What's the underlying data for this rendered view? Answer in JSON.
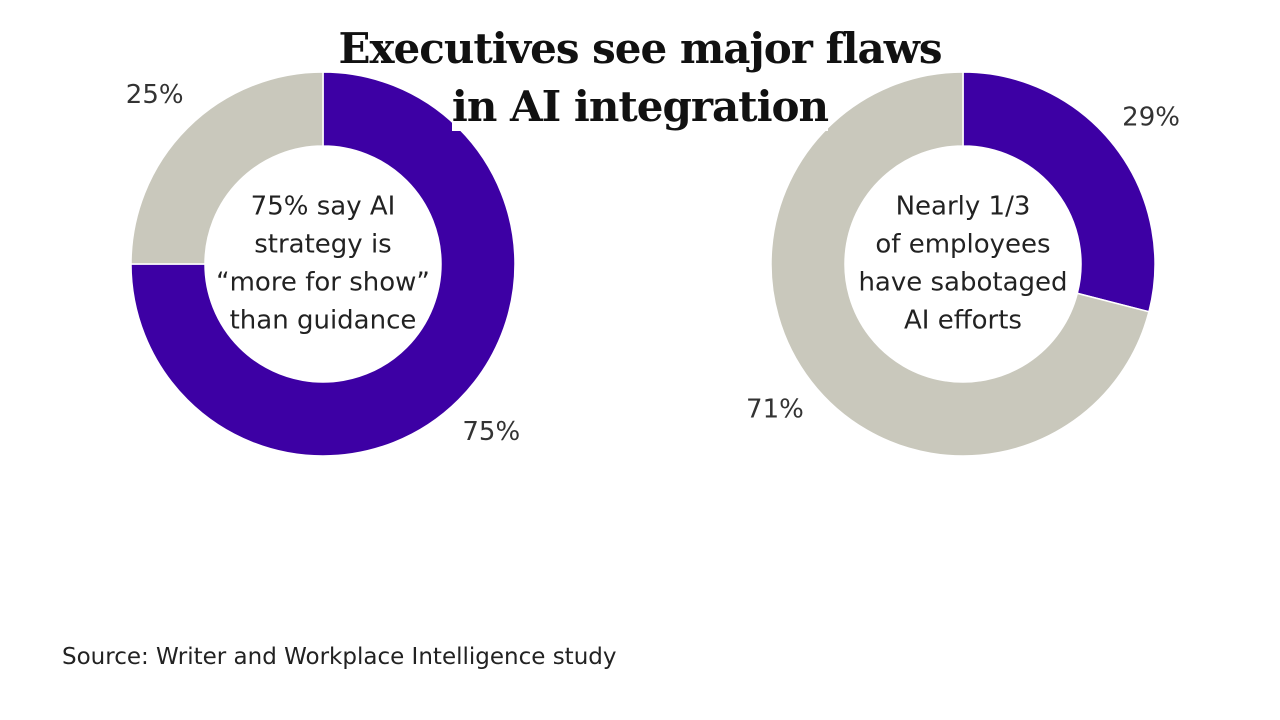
{
  "title": "Executives see major flaws in AI integration",
  "source": "Source: Writer and Workplace Intelligence study",
  "chart_data": [
    {
      "type": "donut",
      "values": [
        75,
        25
      ],
      "value_labels": [
        "75%",
        "25%"
      ],
      "colors": [
        "#3d00a4",
        "#c9c8bc"
      ],
      "annotation": [
        "75% say AI",
        "strategy is",
        "“more for show”",
        "than guidance"
      ]
    },
    {
      "type": "donut",
      "values": [
        29,
        71
      ],
      "value_labels": [
        "29%",
        "71%"
      ],
      "colors": [
        "#3d00a4",
        "#c9c8bc"
      ],
      "annotation": [
        "Nearly 1/3",
        "of employees",
        "have sabotaged",
        "AI efforts"
      ]
    }
  ]
}
